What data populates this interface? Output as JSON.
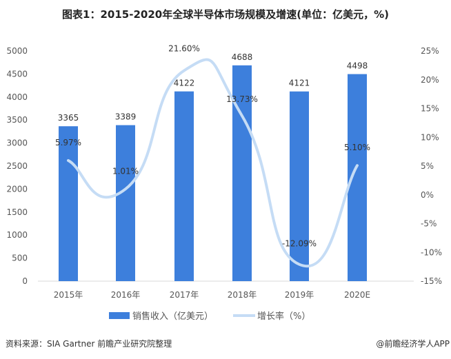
{
  "title": "图表1：2015-2020年全球半导体市场规模及增速(单位：亿美元，%)",
  "source": "资料来源：SIA Gartner 前瞻产业研究院整理",
  "brand": "@前瞻经济学人APP",
  "legend": {
    "bar": "销售收入（亿美元）",
    "line": "增长率（%）"
  },
  "colors": {
    "bar": "#3d7fdc",
    "line": "#c5dcf5"
  },
  "chart_data": {
    "type": "bar",
    "title": "图表1：2015-2020年全球半导体市场规模及增速(单位：亿美元，%)",
    "categories": [
      "2015年",
      "2016年",
      "2017年",
      "2018年",
      "2019年",
      "2020E"
    ],
    "series": [
      {
        "name": "销售收入（亿美元）",
        "type": "bar",
        "axis": "left",
        "values": [
          3365,
          3389,
          4122,
          4688,
          4121,
          4498
        ],
        "labels": [
          "3365",
          "3389",
          "4122",
          "4688",
          "4121",
          "4498"
        ]
      },
      {
        "name": "增长率（%）",
        "type": "line",
        "axis": "right",
        "values": [
          5.97,
          1.01,
          21.6,
          13.73,
          -12.09,
          5.1
        ],
        "labels": [
          "5.97%",
          "1.01%",
          "21.60%",
          "13.73%",
          "-12.09%",
          "5.10%"
        ]
      }
    ],
    "y_left": {
      "ylim": [
        0,
        5000
      ],
      "ticks": [
        "0",
        "500",
        "1000",
        "1500",
        "2000",
        "2500",
        "3000",
        "3500",
        "4000",
        "4500",
        "5000"
      ]
    },
    "y_right": {
      "ylim": [
        -15,
        25
      ],
      "ticks": [
        "-15%",
        "-10%",
        "-5%",
        "0%",
        "5%",
        "10%",
        "15%",
        "20%",
        "25%"
      ]
    },
    "grid": false,
    "legend_position": "bottom"
  }
}
